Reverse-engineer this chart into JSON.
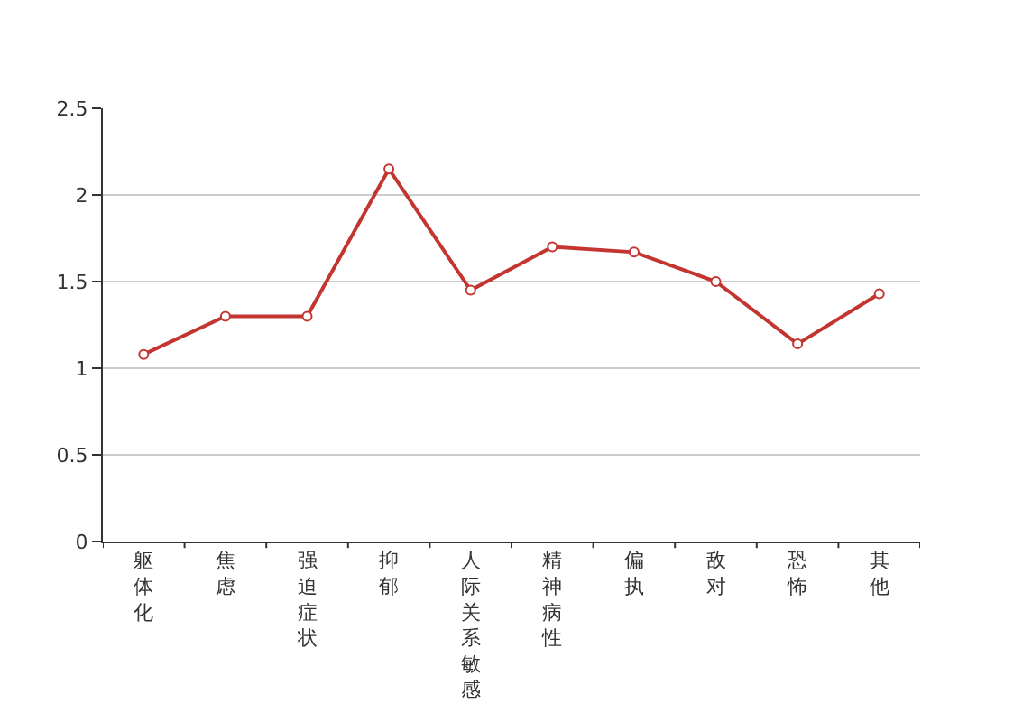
{
  "chart_data": {
    "type": "line",
    "categories": [
      "躯体化",
      "焦虑",
      "强迫症状",
      "抑郁",
      "人际关系敏感",
      "精神病性",
      "偏执",
      "敌对",
      "恐怖",
      "其他"
    ],
    "series": [
      {
        "color": "#c23531",
        "values": [
          1.08,
          1.3,
          1.3,
          2.15,
          1.45,
          1.7,
          1.67,
          1.5,
          1.14,
          1.43
        ]
      }
    ],
    "ylim": [
      0,
      2.5
    ],
    "yticks": [
      0,
      0.5,
      1,
      1.5,
      2,
      2.5
    ],
    "grid": "y",
    "marker": "circle",
    "line_style": "solid"
  }
}
